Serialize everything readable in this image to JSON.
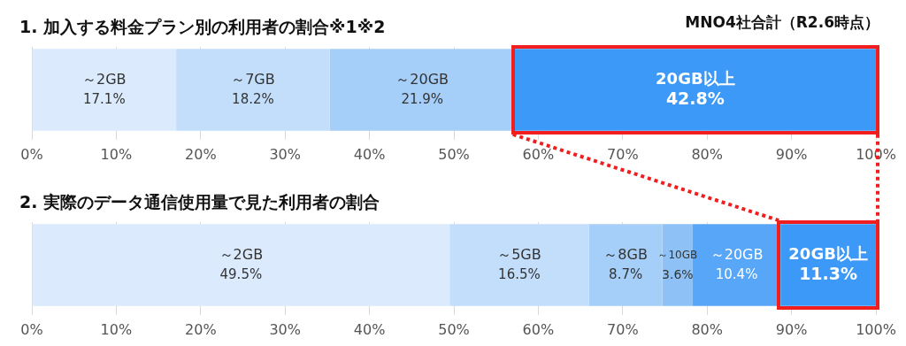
{
  "chart_data": [
    {
      "type": "bar",
      "orientation": "horizontal",
      "stacked": true,
      "title": "1. 加入する料金プラン別の利用者の割合※1※2",
      "annotations": [
        "MNO4社合計（R2.6時点）"
      ],
      "categories": [
        null
      ],
      "grid": "x",
      "xlim": [
        0,
        100
      ],
      "xticks": [
        {
          "value": 0,
          "label": "0%"
        },
        {
          "value": 10,
          "label": "10%"
        },
        {
          "value": 20,
          "label": "20%"
        },
        {
          "value": 30,
          "label": "30%"
        },
        {
          "value": 40,
          "label": "40%"
        },
        {
          "value": 50,
          "label": "50%"
        },
        {
          "value": 60,
          "label": "60%"
        },
        {
          "value": 70,
          "label": "70%"
        },
        {
          "value": 80,
          "label": "80%"
        },
        {
          "value": 90,
          "label": "90%"
        },
        {
          "value": 100,
          "label": "100%"
        }
      ],
      "series": [
        {
          "name": "～2GB",
          "color": "#dbeafc",
          "values": [
            17.1
          ],
          "value_labels": [
            "17.1%"
          ]
        },
        {
          "name": "～7GB",
          "color": "#c2defb",
          "values": [
            18.2
          ],
          "value_labels": [
            "18.2%"
          ]
        },
        {
          "name": "～20GB",
          "color": "#a5cef8",
          "values": [
            21.9
          ],
          "value_labels": [
            "21.9%"
          ]
        },
        {
          "name": "20GB以上",
          "color": "#3d99f7",
          "values": [
            42.8
          ],
          "value_labels": [
            "42.8%"
          ]
        }
      ]
    },
    {
      "type": "bar",
      "orientation": "horizontal",
      "stacked": true,
      "title": "2. 実際のデータ通信使用量で見た利用者の割合",
      "categories": [
        null
      ],
      "grid": "x",
      "xlim": [
        0,
        100
      ],
      "xticks": [
        {
          "value": 0,
          "label": "0%"
        },
        {
          "value": 10,
          "label": "10%"
        },
        {
          "value": 20,
          "label": "20%"
        },
        {
          "value": 30,
          "label": "30%"
        },
        {
          "value": 40,
          "label": "40%"
        },
        {
          "value": 50,
          "label": "50%"
        },
        {
          "value": 60,
          "label": "60%"
        },
        {
          "value": 70,
          "label": "70%"
        },
        {
          "value": 80,
          "label": "80%"
        },
        {
          "value": 90,
          "label": "90%"
        },
        {
          "value": 100,
          "label": "100%"
        }
      ],
      "series": [
        {
          "name": "～2GB",
          "color": "#dbeafc",
          "values": [
            49.5
          ],
          "value_labels": [
            "49.5%"
          ]
        },
        {
          "name": "～5GB",
          "color": "#c2defb",
          "values": [
            16.5
          ],
          "value_labels": [
            "16.5%"
          ]
        },
        {
          "name": "～8GB",
          "color": "#a5cef8",
          "values": [
            8.7
          ],
          "value_labels": [
            "8.7%"
          ]
        },
        {
          "name": "～10GB",
          "color": "#8ec2f7",
          "values": [
            3.6
          ],
          "value_labels": [
            "3.6%"
          ]
        },
        {
          "name": "～20GB",
          "color": "#58a6f7",
          "values": [
            10.4
          ],
          "value_labels": [
            "10.4%"
          ]
        },
        {
          "name": "20GB以上",
          "color": "#3d99f7",
          "values": [
            11.3
          ],
          "value_labels": [
            "11.3%"
          ]
        }
      ]
    }
  ]
}
